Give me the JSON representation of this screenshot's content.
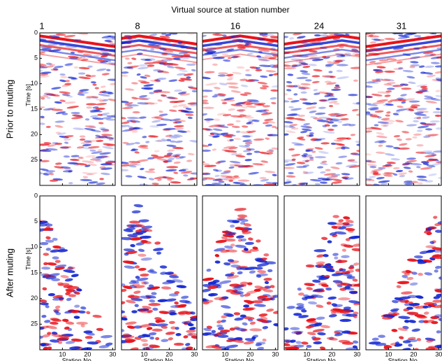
{
  "figure": {
    "title": "Virtual source at station number",
    "columns": [
      "1",
      "8",
      "16",
      "24",
      "31"
    ],
    "rows": [
      {
        "label": "Prior to muting",
        "y_axis_label": "Time [s]"
      },
      {
        "label": "After muting",
        "y_axis_label": "Time [s]"
      }
    ],
    "x_axis_label": "Station No.",
    "xlim": [
      1,
      31
    ],
    "ylim": [
      0,
      30
    ],
    "xticks": [
      10,
      20,
      30
    ],
    "yticks": [
      0,
      5,
      10,
      15,
      20,
      25
    ]
  }
}
